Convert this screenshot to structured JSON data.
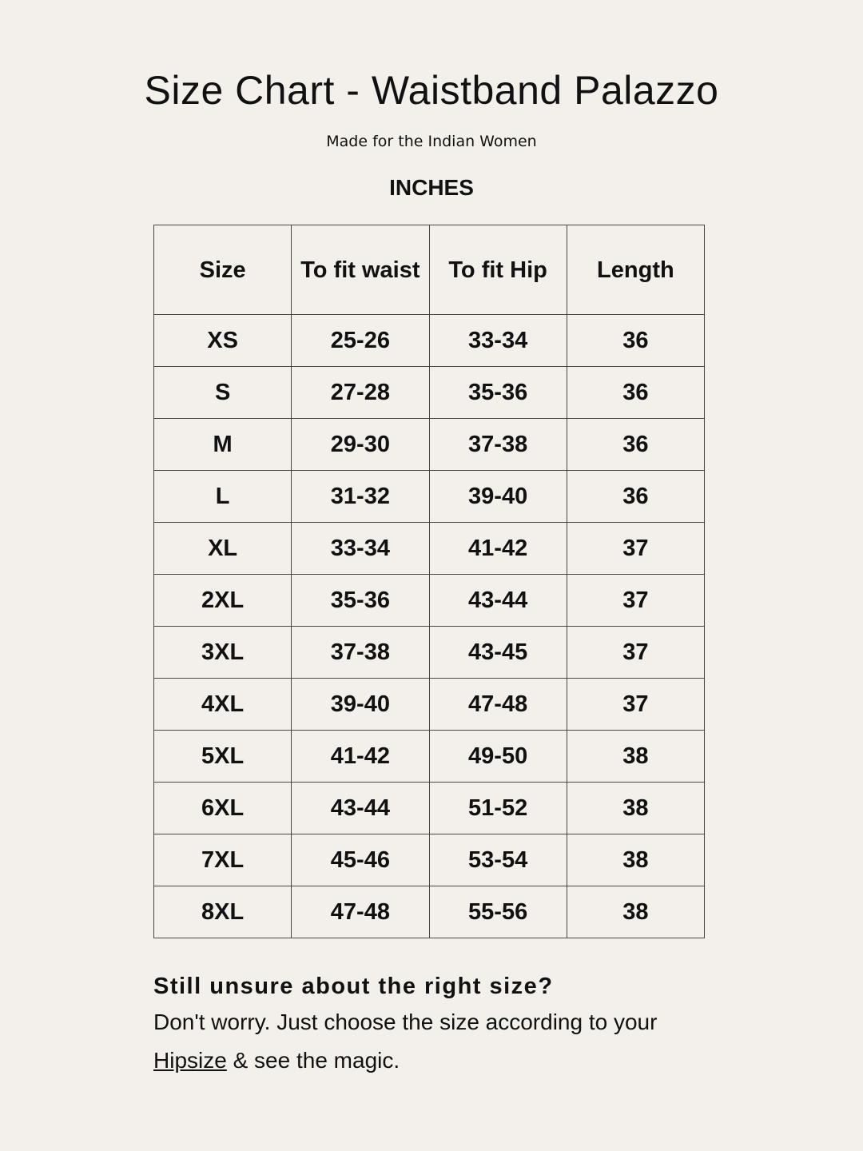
{
  "title": "Size Chart - Waistband Palazzo",
  "subtitle": "Made for the Indian Women",
  "unit": "INCHES",
  "table": {
    "headers": [
      "Size",
      "To fit waist",
      "To fit Hip",
      "Length"
    ],
    "rows": [
      [
        "XS",
        "25-26",
        "33-34",
        "36"
      ],
      [
        "S",
        "27-28",
        "35-36",
        "36"
      ],
      [
        "M",
        "29-30",
        "37-38",
        "36"
      ],
      [
        "L",
        "31-32",
        "39-40",
        "36"
      ],
      [
        "XL",
        "33-34",
        "41-42",
        "37"
      ],
      [
        "2XL",
        "35-36",
        "43-44",
        "37"
      ],
      [
        "3XL",
        "37-38",
        "43-45",
        "37"
      ],
      [
        "4XL",
        "39-40",
        "47-48",
        "37"
      ],
      [
        "5XL",
        "41-42",
        "49-50",
        "38"
      ],
      [
        "6XL",
        "43-44",
        "51-52",
        "38"
      ],
      [
        "7XL",
        "45-46",
        "53-54",
        "38"
      ],
      [
        "8XL",
        "47-48",
        "55-56",
        "38"
      ]
    ]
  },
  "note": {
    "heading": "Still unsure about the right size?",
    "body_before": "Don't worry. Just choose the size according to your ",
    "link": "Hipsize",
    "body_after": " & see the magic."
  }
}
